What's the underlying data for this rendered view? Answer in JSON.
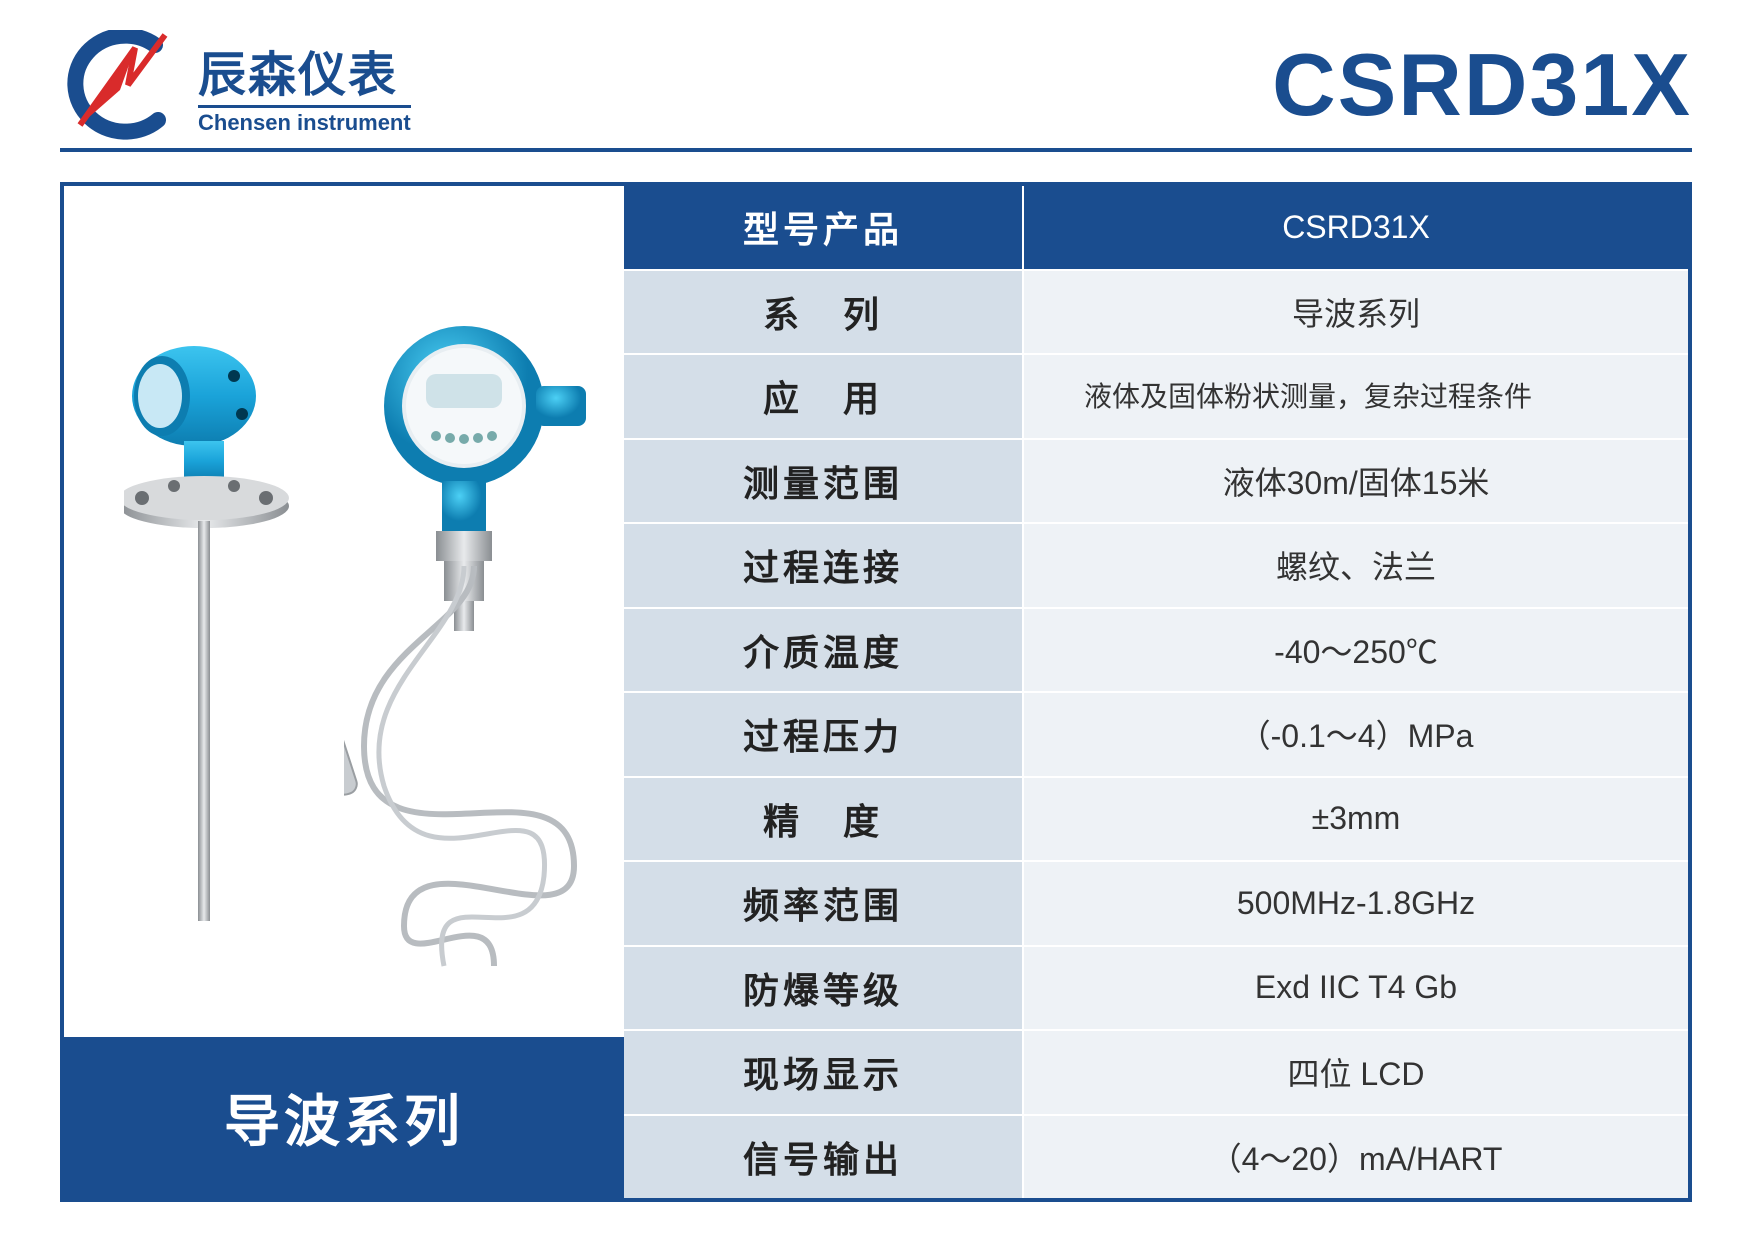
{
  "colors": {
    "brand": "#1a4d8f",
    "accent_red": "#d92b2b",
    "label_bg": "#d4dee8",
    "value_bg": "#eef2f6",
    "device_blue": "#1aa3d9",
    "device_blue_dark": "#0d7db0",
    "steel": "#b8bcc0",
    "steel_dark": "#8a8e92"
  },
  "header": {
    "company_cn": "辰森仪表",
    "company_en": "Chensen instrument",
    "model": "CSRD31X"
  },
  "series_band": "导波系列",
  "table": {
    "header": {
      "label": "型号产品",
      "value": "CSRD31X"
    },
    "rows": [
      {
        "label": "系　列",
        "value": "导波系列"
      },
      {
        "label": "应　用",
        "value": "液体及固体粉状测量，复杂过程条件",
        "small": true
      },
      {
        "label": "测量范围",
        "value": "液体30m/固体15米"
      },
      {
        "label": "过程连接",
        "value": "螺纹、法兰"
      },
      {
        "label": "介质温度",
        "value": "-40～250℃"
      },
      {
        "label": "过程压力",
        "value": "（-0.1～4）MPa"
      },
      {
        "label": "精　度",
        "value": "±3mm"
      },
      {
        "label": "频率范围",
        "value": "500MHz-1.8GHz"
      },
      {
        "label": "防爆等级",
        "value": "Exd IIC T4 Gb"
      },
      {
        "label": "现场显示",
        "value": "四位 LCD"
      },
      {
        "label": "信号输出",
        "value": "（4～20）mA/HART"
      }
    ]
  }
}
